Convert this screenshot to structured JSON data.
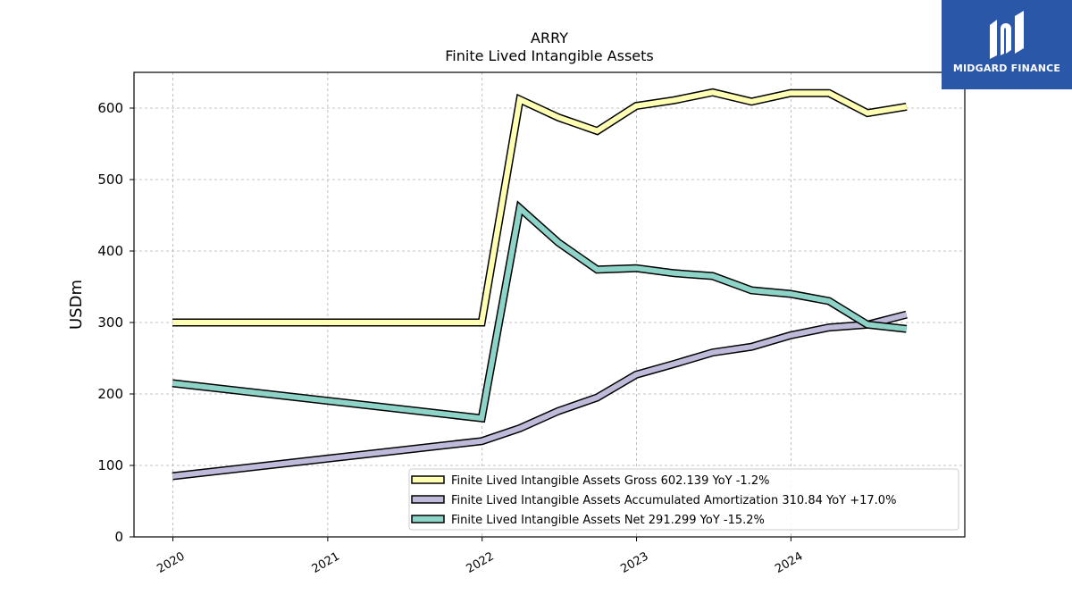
{
  "brand": {
    "name": "MIDGARD FINANCE",
    "bg_color": "#2b57a9"
  },
  "chart_data": {
    "type": "line",
    "title": "ARRY",
    "subtitle": "Finite Lived Intangible Assets",
    "xlabel": "",
    "ylabel": "USDm",
    "xlim": [
      "2019-10-01",
      "2025-02-15"
    ],
    "ylim": [
      0,
      650
    ],
    "x_ticks": [
      "2020",
      "2021",
      "2022",
      "2023",
      "2024"
    ],
    "y_ticks": [
      0,
      100,
      200,
      300,
      400,
      500,
      600
    ],
    "grid": true,
    "legend_position": "lower-right",
    "series": [
      {
        "name": "Finite Lived Intangible Assets Gross",
        "legend_label": "Finite Lived Intangible Assets Gross  602.139 YoY -1.2%",
        "color": "#ffffb3",
        "x": [
          "2019-12-31",
          "2021-12-31",
          "2022-03-31",
          "2022-06-30",
          "2022-09-30",
          "2022-12-31",
          "2023-03-31",
          "2023-06-30",
          "2023-09-30",
          "2023-12-31",
          "2024-03-31",
          "2024-06-30",
          "2024-09-30"
        ],
        "values": [
          300,
          300,
          612,
          587,
          568,
          603,
          611,
          622,
          609,
          621,
          621,
          593,
          602
        ]
      },
      {
        "name": "Finite Lived Intangible Assets Accumulated Amortization",
        "legend_label": "Finite Lived Intangible Assets Accumulated Amortization  310.84 YoY +17.0%",
        "color": "#bebada",
        "x": [
          "2019-12-31",
          "2021-12-31",
          "2022-03-31",
          "2022-06-30",
          "2022-09-30",
          "2022-12-31",
          "2023-03-31",
          "2023-06-30",
          "2023-09-30",
          "2023-12-31",
          "2024-03-31",
          "2024-06-30",
          "2024-09-30"
        ],
        "values": [
          85,
          134,
          152,
          176,
          195,
          227,
          242,
          258,
          266,
          282,
          293,
          297,
          311
        ]
      },
      {
        "name": "Finite Lived Intangible Assets Net",
        "legend_label": "Finite Lived Intangible Assets Net  291.299 YoY -15.2%",
        "color": "#8dd3c7",
        "x": [
          "2019-12-31",
          "2021-12-31",
          "2022-03-31",
          "2022-06-30",
          "2022-09-30",
          "2022-12-31",
          "2023-03-31",
          "2023-06-30",
          "2023-09-30",
          "2023-12-31",
          "2024-03-31",
          "2024-06-30",
          "2024-09-30"
        ],
        "values": [
          215,
          166,
          460,
          412,
          374,
          376,
          369,
          365,
          345,
          340,
          330,
          297,
          291
        ]
      }
    ]
  }
}
